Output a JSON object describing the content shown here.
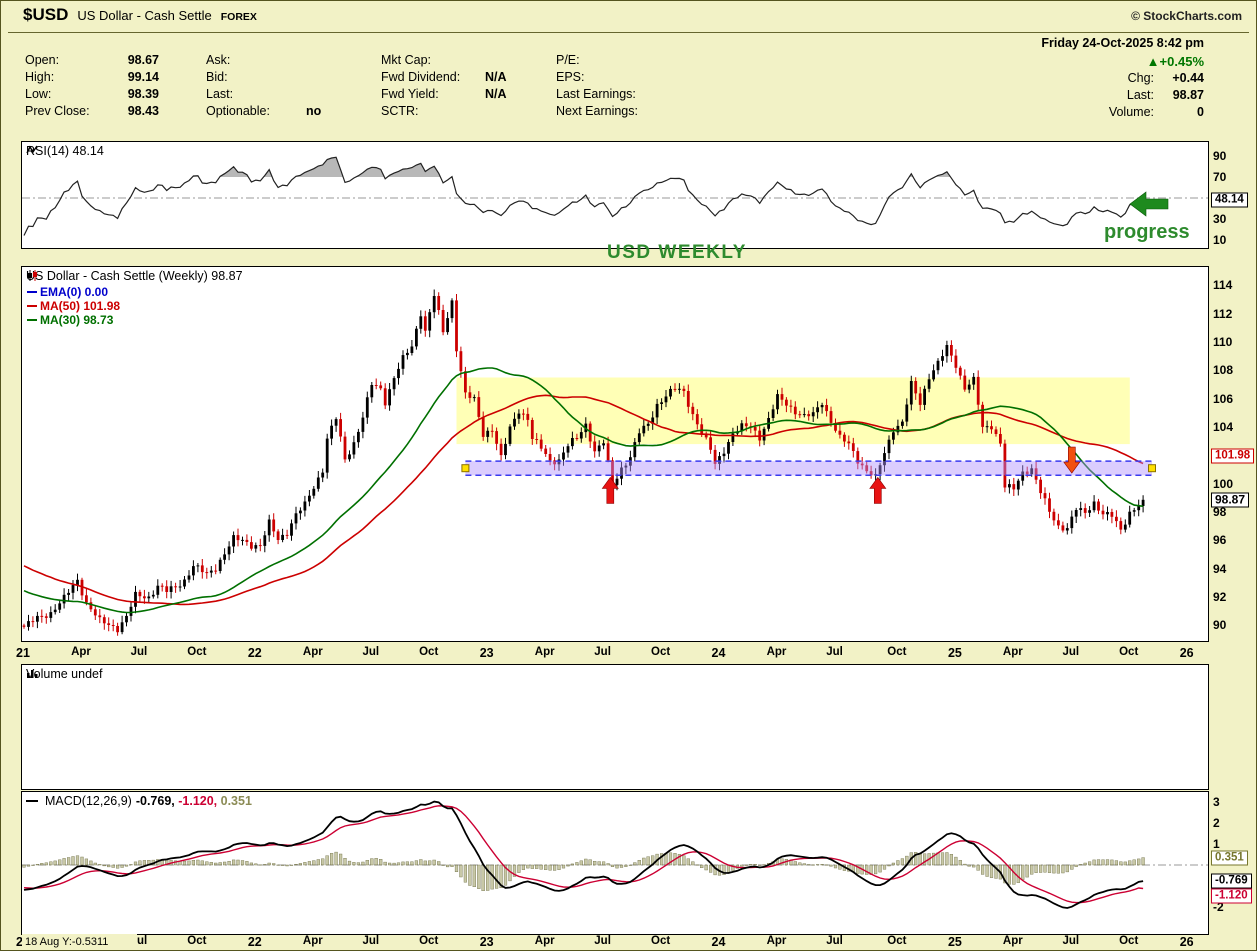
{
  "header": {
    "symbol": "$USD",
    "name": "US Dollar - Cash Settle",
    "exchange": "FOREX",
    "credit": "© StockCharts.com"
  },
  "quote": {
    "datetime": "Friday 24-Oct-2025 8:42 pm",
    "up_triangle": "▲",
    "pct_change": "+0.45%",
    "columns": [
      {
        "pairs": [
          {
            "label": "Open:",
            "value": "98.67"
          },
          {
            "label": "High:",
            "value": "99.14"
          },
          {
            "label": "Low:",
            "value": "98.39"
          },
          {
            "label": "Prev Close:",
            "value": "98.43"
          }
        ]
      },
      {
        "pairs": [
          {
            "label": "Ask:",
            "value": ""
          },
          {
            "label": "Bid:",
            "value": ""
          },
          {
            "label": "Last:",
            "value": ""
          },
          {
            "label": "Optionable:",
            "value": "no"
          }
        ]
      },
      {
        "pairs": [
          {
            "label": "Mkt Cap:",
            "value": ""
          },
          {
            "label": "Fwd Dividend:",
            "value": "N/A"
          },
          {
            "label": "Fwd Yield:",
            "value": "N/A"
          },
          {
            "label": "SCTR:",
            "value": ""
          }
        ]
      },
      {
        "pairs": [
          {
            "label": "P/E:",
            "value": ""
          },
          {
            "label": "EPS:",
            "value": ""
          },
          {
            "label": "Last Earnings:",
            "value": ""
          },
          {
            "label": "Next Earnings:",
            "value": ""
          }
        ]
      }
    ],
    "right_pairs": [
      {
        "label": "Chg:",
        "value": "+0.44"
      },
      {
        "label": "Last:",
        "value": "98.87"
      },
      {
        "label": "Volume:",
        "value": "0"
      }
    ]
  },
  "rsi_panel": {
    "legend": "RSI(14) 48.14"
  },
  "main_panel": {
    "title": "US Dollar - Cash Settle (Weekly) 98.87",
    "legend": [
      {
        "text": "EMA(0) 0.00",
        "color": "#0000cc"
      },
      {
        "text": "MA(50) 101.98",
        "color": "#cc0000"
      },
      {
        "text": "MA(30) 98.73",
        "color": "#007000"
      }
    ]
  },
  "volume_panel": {
    "legend": "Volume undef"
  },
  "macd_panel": {
    "legend_prefix": "MACD(12,26,9)",
    "values": [
      {
        "text": "-0.769,",
        "color": "#000000"
      },
      {
        "text": "-1.120,",
        "color": "#cc0033"
      },
      {
        "text": "0.351",
        "color": "#8b8b55"
      }
    ]
  },
  "watermark": "USD WEEKLY",
  "progress_label": "progress",
  "footer": "18 Aug Y:-0.5311",
  "chart_data": {
    "type": "candlestick",
    "timeframe": "weekly",
    "symbol": "$USD",
    "title": "US Dollar - Cash Settle (Weekly)",
    "last_close": 98.87,
    "x_axis": {
      "start_date": "2021-01-04",
      "weeks_shown": 252,
      "axis_weeks": 266,
      "tick_months": [
        "Apr",
        "Jul",
        "Oct"
      ],
      "year_ticks": [
        "21",
        "22",
        "23",
        "24",
        "25",
        "26"
      ]
    },
    "y_axis": {
      "ylim": [
        88.9,
        115.3
      ],
      "ticks": [
        114,
        112,
        110,
        108,
        106,
        104,
        100,
        98,
        96,
        94,
        92,
        90
      ],
      "price_boxes": [
        {
          "value": 101.98,
          "label": "101.98",
          "color": "#cc0000"
        },
        {
          "value": 98.87,
          "label": "98.87",
          "color": "#000000"
        }
      ]
    },
    "prehistory_anchors": [
      [
        -52,
        99.5
      ],
      [
        -46,
        97.0
      ],
      [
        -40,
        96.8
      ],
      [
        -34,
        97.3
      ],
      [
        -28,
        93.5
      ],
      [
        -22,
        92.8
      ],
      [
        -16,
        93.9
      ],
      [
        -10,
        92.2
      ],
      [
        -5,
        91.0
      ],
      [
        -1,
        90.2
      ]
    ],
    "weekly_close_anchors": [
      [
        0,
        89.9
      ],
      [
        3,
        90.5
      ],
      [
        6,
        90.9
      ],
      [
        9,
        91.9
      ],
      [
        12,
        93.2
      ],
      [
        14,
        91.6
      ],
      [
        17,
        90.3
      ],
      [
        21,
        89.8
      ],
      [
        23,
        90.6
      ],
      [
        25,
        92.1
      ],
      [
        28,
        92.0
      ],
      [
        30,
        92.8
      ],
      [
        32,
        92.4
      ],
      [
        34,
        92.7
      ],
      [
        36,
        93.2
      ],
      [
        38,
        94.2
      ],
      [
        41,
        93.6
      ],
      [
        43,
        94.1
      ],
      [
        45,
        95.1
      ],
      [
        47,
        96.1
      ],
      [
        49,
        96.0
      ],
      [
        51,
        95.7
      ],
      [
        53,
        95.6
      ],
      [
        55,
        97.2
      ],
      [
        57,
        96.1
      ],
      [
        59,
        96.6
      ],
      [
        61,
        97.8
      ],
      [
        63,
        98.5
      ],
      [
        65,
        99.8
      ],
      [
        67,
        101.0
      ],
      [
        68,
        103.2
      ],
      [
        70,
        104.6
      ],
      [
        72,
        101.7
      ],
      [
        74,
        102.9
      ],
      [
        76,
        104.7
      ],
      [
        78,
        107.0
      ],
      [
        80,
        106.7
      ],
      [
        81,
        105.8
      ],
      [
        83,
        107.5
      ],
      [
        85,
        108.8
      ],
      [
        87,
        109.7
      ],
      [
        89,
        112.1
      ],
      [
        90,
        110.8
      ],
      [
        92,
        113.3
      ],
      [
        94,
        110.7
      ],
      [
        96,
        112.9
      ],
      [
        97,
        109.6
      ],
      [
        99,
        106.3
      ],
      [
        101,
        105.9
      ],
      [
        103,
        103.5
      ],
      [
        105,
        103.9
      ],
      [
        107,
        101.8
      ],
      [
        109,
        103.9
      ],
      [
        111,
        105.2
      ],
      [
        113,
        104.6
      ],
      [
        114,
        103.2
      ],
      [
        116,
        102.5
      ],
      [
        118,
        101.6
      ],
      [
        120,
        101.7
      ],
      [
        122,
        102.7
      ],
      [
        124,
        103.2
      ],
      [
        126,
        104.2
      ],
      [
        128,
        102.3
      ],
      [
        130,
        102.9
      ],
      [
        132,
        99.9
      ],
      [
        134,
        101.1
      ],
      [
        136,
        101.9
      ],
      [
        138,
        103.6
      ],
      [
        140,
        104.2
      ],
      [
        142,
        105.6
      ],
      [
        144,
        106.2
      ],
      [
        146,
        106.7
      ],
      [
        148,
        106.5
      ],
      [
        150,
        104.9
      ],
      [
        152,
        103.6
      ],
      [
        154,
        102.4
      ],
      [
        155,
        101.4
      ],
      [
        157,
        102.4
      ],
      [
        159,
        103.5
      ],
      [
        161,
        104.0
      ],
      [
        163,
        104.1
      ],
      [
        165,
        103.3
      ],
      [
        167,
        104.5
      ],
      [
        169,
        106.1
      ],
      [
        171,
        105.7
      ],
      [
        173,
        105.1
      ],
      [
        175,
        104.7
      ],
      [
        177,
        104.9
      ],
      [
        179,
        105.8
      ],
      [
        181,
        104.4
      ],
      [
        183,
        103.2
      ],
      [
        185,
        102.8
      ],
      [
        187,
        101.7
      ],
      [
        189,
        100.9
      ],
      [
        191,
        100.4
      ],
      [
        193,
        102.2
      ],
      [
        195,
        103.9
      ],
      [
        197,
        104.3
      ],
      [
        199,
        107.0
      ],
      [
        201,
        105.7
      ],
      [
        203,
        107.6
      ],
      [
        205,
        108.5
      ],
      [
        207,
        109.6
      ],
      [
        209,
        108.4
      ],
      [
        211,
        106.8
      ],
      [
        213,
        107.3
      ],
      [
        215,
        103.9
      ],
      [
        217,
        104.1
      ],
      [
        219,
        102.9
      ],
      [
        220,
        99.8
      ],
      [
        222,
        99.6
      ],
      [
        224,
        100.8
      ],
      [
        226,
        101.1
      ],
      [
        228,
        99.4
      ],
      [
        230,
        98.0
      ],
      [
        232,
        97.0
      ],
      [
        234,
        96.9
      ],
      [
        236,
        98.2
      ],
      [
        238,
        97.9
      ],
      [
        240,
        98.7
      ],
      [
        242,
        97.9
      ],
      [
        244,
        97.7
      ],
      [
        246,
        96.7
      ],
      [
        248,
        98.0
      ],
      [
        250,
        98.5
      ],
      [
        251,
        98.87
      ]
    ],
    "overlays": [
      {
        "name": "EMA(0)",
        "period": 0,
        "last": 0.0,
        "color": "#0000cc"
      },
      {
        "name": "MA(50)",
        "period": 50,
        "last": 101.98,
        "color": "#cc0000"
      },
      {
        "name": "MA(30)",
        "period": 30,
        "last": 98.73,
        "color": "#007000"
      }
    ],
    "rsi": {
      "period": 14,
      "last": 48.14,
      "ticks": [
        90,
        70,
        30,
        10
      ],
      "midline": 50,
      "overbought": 70
    },
    "macd": {
      "fast": 12,
      "slow": 26,
      "signal": 9,
      "last_macd": -0.769,
      "last_signal": -1.12,
      "last_hist": 0.351,
      "ticks": [
        3,
        2,
        1,
        -2
      ]
    },
    "volume": {
      "status": "undef"
    },
    "annotations": {
      "watermark": "USD WEEKLY",
      "yellow_zone": {
        "start_week": 97,
        "end_week": 248,
        "price_top": 107.5,
        "price_bottom": 102.8
      },
      "support_band": {
        "start_week": 99,
        "end_week": 253,
        "price_top": 101.6,
        "price_bottom": 100.6
      },
      "arrows": [
        {
          "week": 131.5,
          "direction": "up",
          "price": 100.45
        },
        {
          "week": 191.5,
          "direction": "up",
          "price": 100.45
        },
        {
          "week": 235,
          "direction": "down",
          "price": 100.75
        }
      ],
      "rsi_arrow": {
        "direction": "left",
        "at_value": 48.14,
        "label": "progress"
      }
    }
  }
}
